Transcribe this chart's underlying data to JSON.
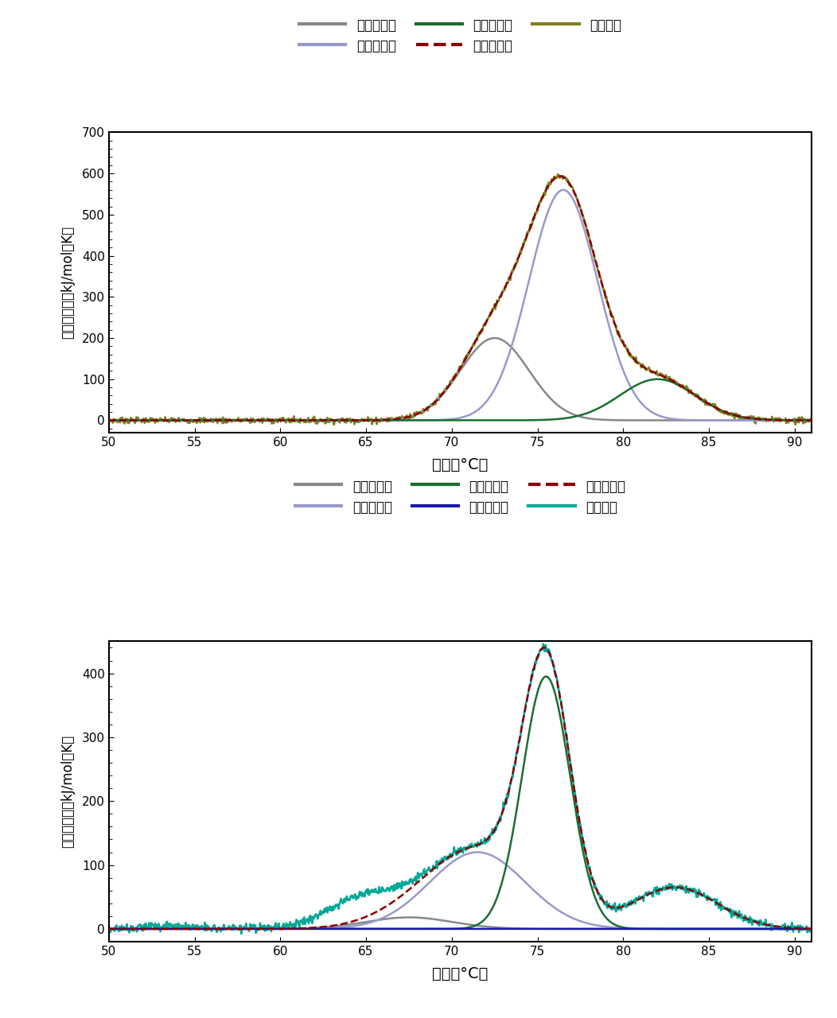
{
  "top_chart": {
    "gaussians": [
      {
        "color": "#888888",
        "mu": 72.5,
        "sigma": 2.0,
        "amp": 200
      },
      {
        "color": "#9999cc",
        "mu": 76.5,
        "sigma": 2.0,
        "amp": 560
      },
      {
        "color": "#1a6e30",
        "mu": 82.0,
        "sigma": 2.2,
        "amp": 100
      }
    ],
    "raw_color": "#808020",
    "model_color": "#8b0000",
    "ylabel": "分析データ（kJ/mol・K）",
    "xlabel": "温度（°C）",
    "xlim": [
      50,
      91
    ],
    "ylim": [
      -30,
      700
    ],
    "yticks": [
      0,
      100,
      200,
      300,
      400,
      500,
      600,
      700
    ],
    "xticks": [
      50,
      55,
      60,
      65,
      70,
      75,
      80,
      85,
      90
    ],
    "legend_labels": [
      "ガウス分布",
      "ガウス分布",
      "ガウス分布",
      "モデル合計",
      "生データ"
    ]
  },
  "bottom_chart": {
    "gaussians": [
      {
        "color": "#888888",
        "mu": 67.5,
        "sigma": 2.5,
        "amp": 18
      },
      {
        "color": "#9999cc",
        "mu": 71.5,
        "sigma": 2.8,
        "amp": 120
      },
      {
        "color": "#1a6e30",
        "mu": 75.5,
        "sigma": 1.4,
        "amp": 395
      },
      {
        "color": "#1a1aaa",
        "mu": 77.5,
        "sigma": 2.0,
        "amp": 0
      }
    ],
    "right_shoulder": {
      "mu": 83.0,
      "sigma": 2.5,
      "amp": 65,
      "color": "#1a6e30"
    },
    "extra_bumps": [
      {
        "mu": 53.5,
        "sigma": 1.5,
        "amp": 5
      },
      {
        "mu": 64.5,
        "sigma": 2.0,
        "amp": 38
      }
    ],
    "raw_color": "#00a896",
    "model_color": "#8b0000",
    "ylabel": "分析データ（kJ/mol・K）",
    "xlabel": "温度（°C）",
    "xlim": [
      50,
      91
    ],
    "ylim": [
      -20,
      450
    ],
    "yticks": [
      0,
      100,
      200,
      300,
      400
    ],
    "xticks": [
      50,
      55,
      60,
      65,
      70,
      75,
      80,
      85,
      90
    ],
    "legend_labels": [
      "ガウス分布",
      "ガウス分布",
      "ガウス分布",
      "ガウス分布",
      "モデル合計",
      "生データ"
    ]
  }
}
